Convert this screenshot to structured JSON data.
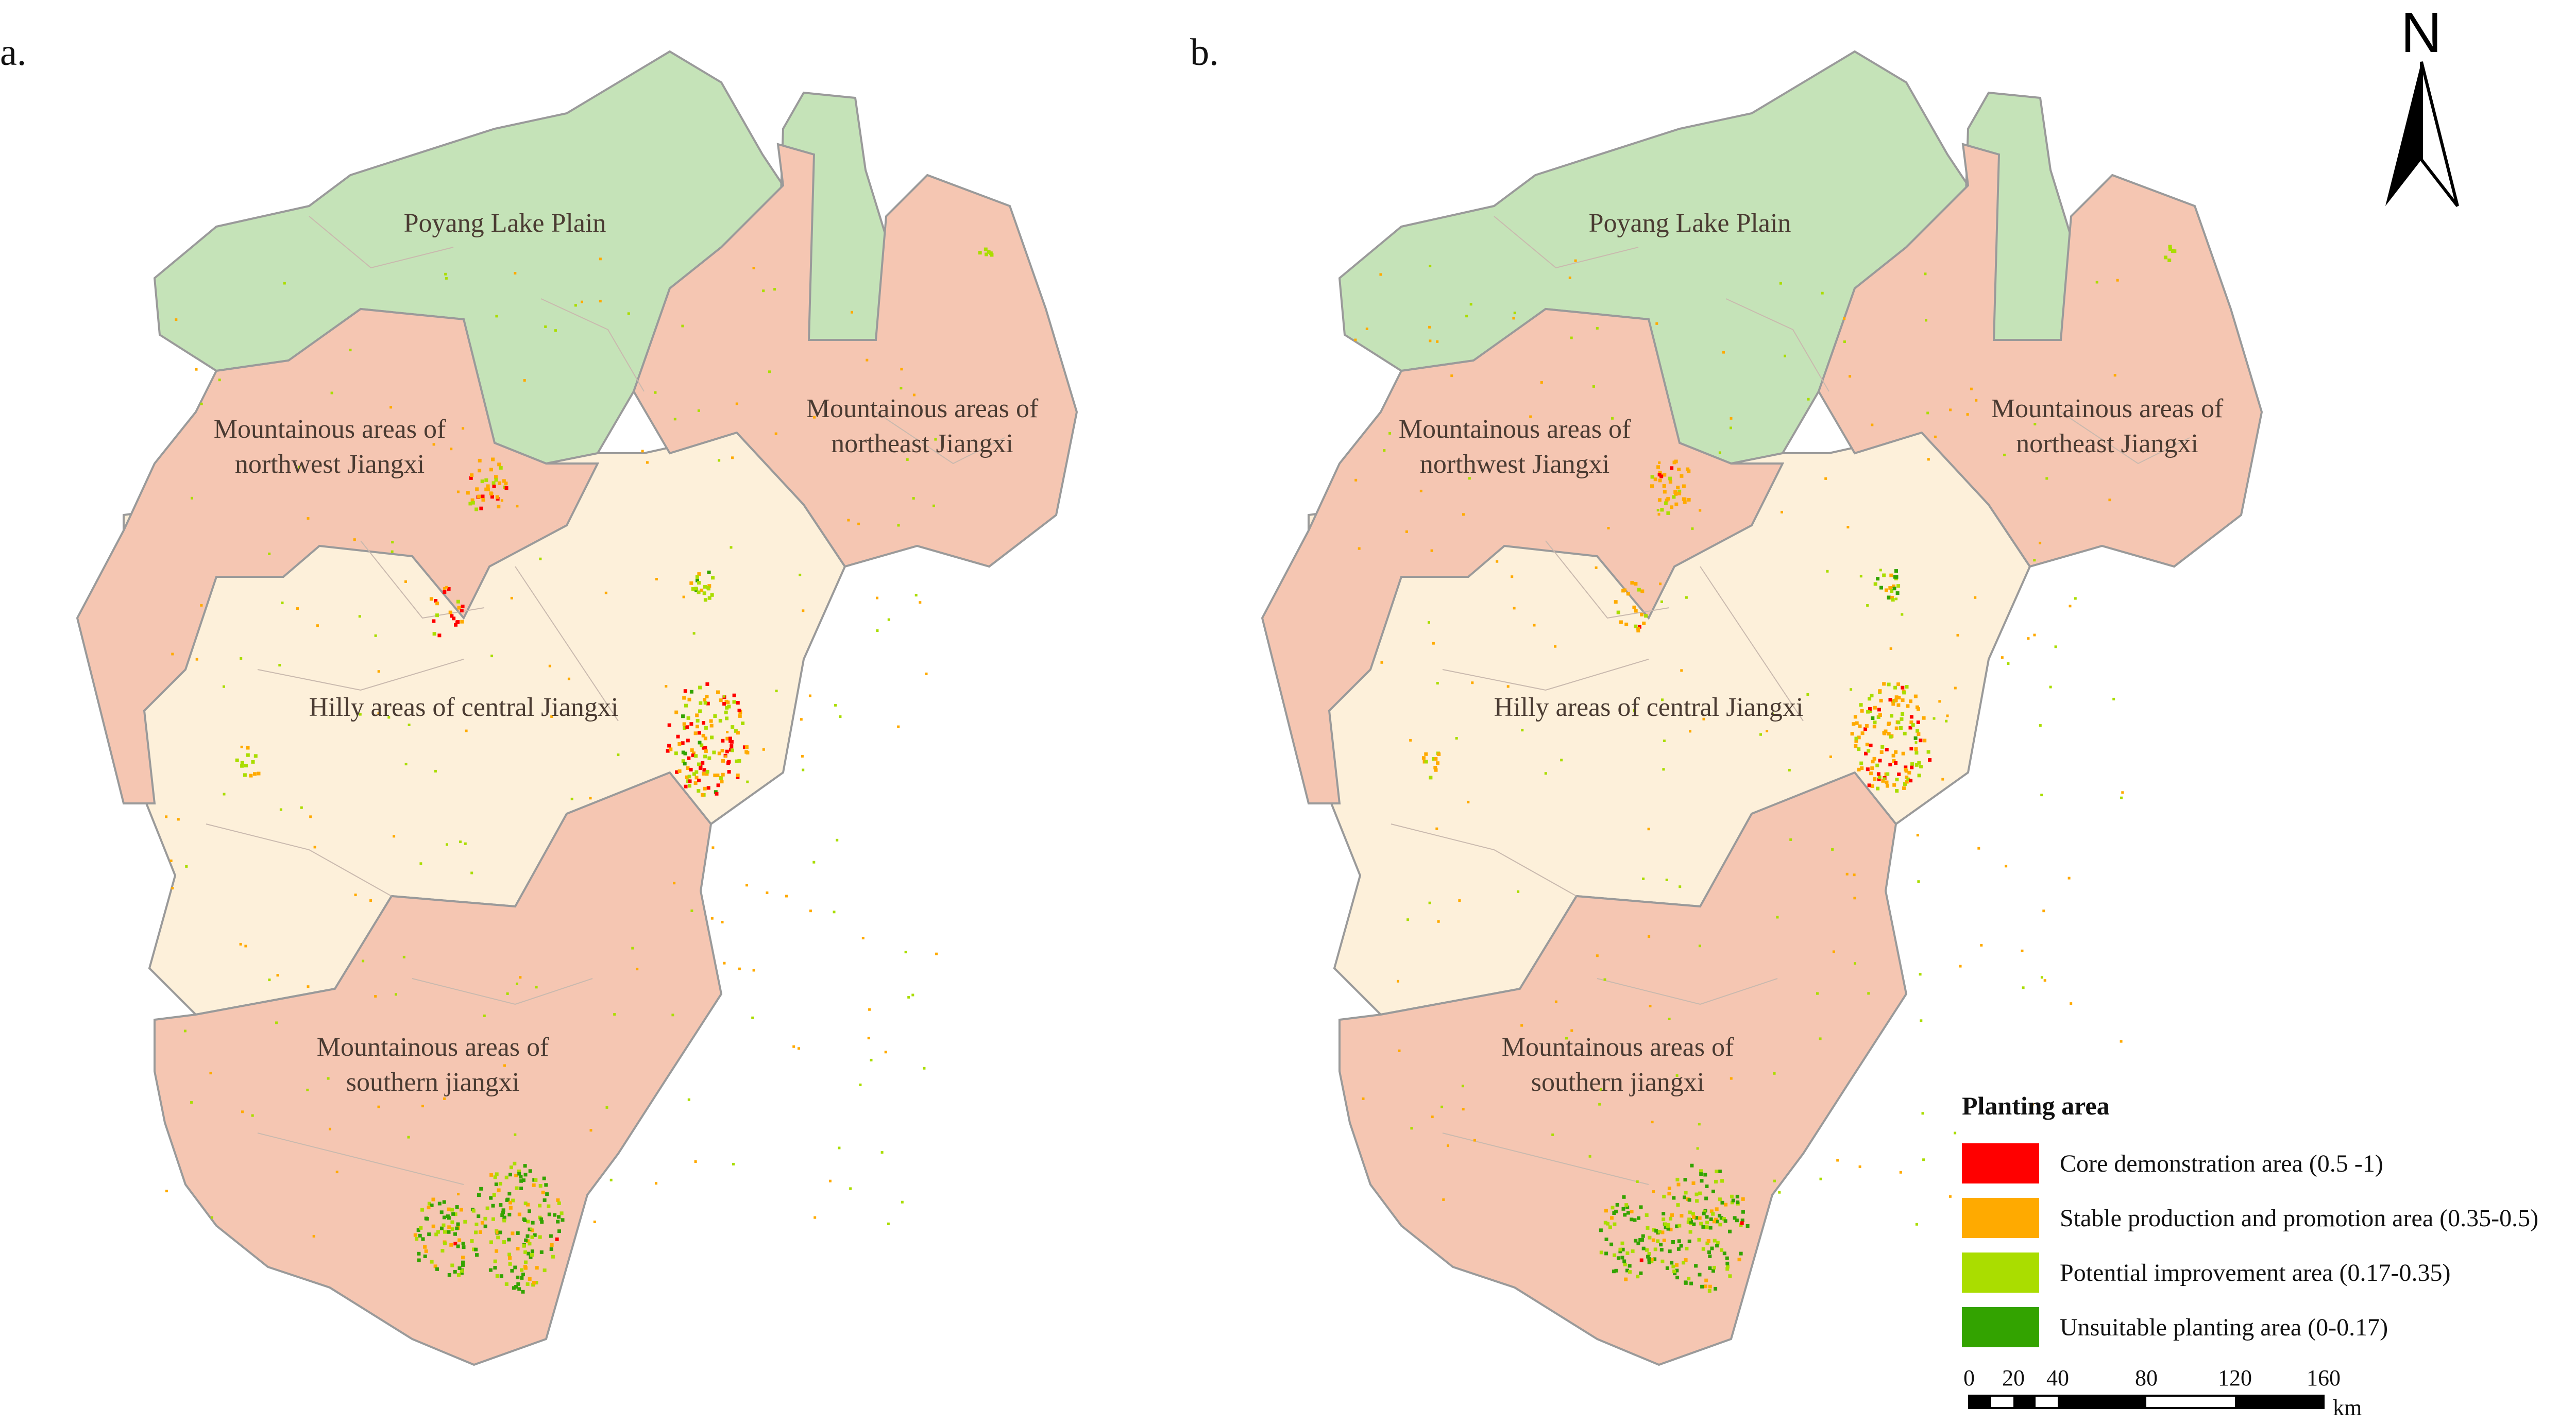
{
  "panels": [
    {
      "label": "a."
    },
    {
      "label": "b."
    }
  ],
  "regions": {
    "poyang": "Poyang Lake Plain",
    "northwest_line1": "Mountainous areas of",
    "northwest_line2": "northwest Jiangxi",
    "northeast_line1": "Mountainous areas of",
    "northeast_line2": "northeast Jiangxi",
    "central": "Hilly areas of central Jiangxi",
    "southern_line1": "Mountainous areas of",
    "southern_line2": "southern jiangxi"
  },
  "region_colors": {
    "plain": "#c5e3b8",
    "mountain": "#f5c6b2",
    "hilly": "#fdf0da",
    "border": "#9a9a9a"
  },
  "north_arrow": {
    "label": "N",
    "icon": "north-arrow-icon"
  },
  "legend": {
    "title": "Planting area",
    "items": [
      {
        "label": "Core demonstration area (0.5 -1)",
        "color": "#ff0000"
      },
      {
        "label": "Stable production and promotion area (0.35-0.5)",
        "color": "#ffaa00"
      },
      {
        "label": "Potential improvement area (0.17-0.35)",
        "color": "#aadd00"
      },
      {
        "label": "Unsuitable planting area (0-0.17)",
        "color": "#33a300"
      }
    ]
  },
  "scale_bar": {
    "ticks": [
      "0",
      "20",
      "40",
      "80",
      "120",
      "160"
    ],
    "unit": "km"
  }
}
